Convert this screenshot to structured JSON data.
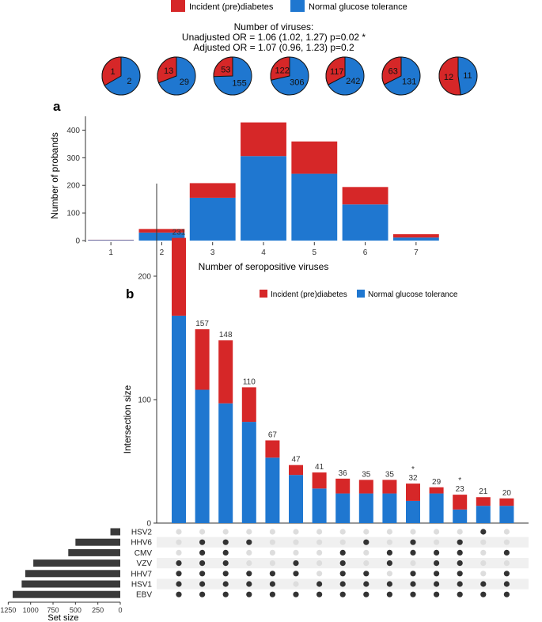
{
  "colors": {
    "red": "#d62728",
    "blue": "#1f77d0",
    "dot_on": "#333333",
    "dot_off": "#dddddd",
    "stripe": "#f0f0f0",
    "setbar": "#3a3a3a"
  },
  "legend": {
    "red_label": "Incident (pre)diabetes",
    "blue_label": "Normal glucose tolerance"
  },
  "header": {
    "line1": "Number of viruses:",
    "line2": "Unadjusted OR = 1.06 (1.02, 1.27) p=0.02 *",
    "line3": "Adjusted OR = 1.07 (0.96, 1.23) p=0.2"
  },
  "chart_data": [
    {
      "type": "pie",
      "title": "Number of viruses",
      "pies": [
        {
          "red": 1,
          "blue": 2
        },
        {
          "red": 13,
          "blue": 29
        },
        {
          "red": 53,
          "blue": 155
        },
        {
          "red": 122,
          "blue": 306
        },
        {
          "red": 117,
          "blue": 242
        },
        {
          "red": 63,
          "blue": 131
        },
        {
          "red": 12,
          "blue": 11
        }
      ]
    },
    {
      "type": "bar",
      "panel": "a",
      "categories": [
        "1",
        "2",
        "3",
        "4",
        "5",
        "6",
        "7"
      ],
      "series": [
        {
          "name": "Normal glucose tolerance",
          "values": [
            2,
            29,
            155,
            306,
            242,
            131,
            11
          ]
        },
        {
          "name": "Incident (pre)diabetes",
          "values": [
            1,
            13,
            53,
            122,
            117,
            63,
            12
          ]
        }
      ],
      "xlabel": "Number of seropositive viruses",
      "ylabel": "Number of probands",
      "yticks": [
        0,
        100,
        200,
        300,
        400
      ],
      "ylim": [
        0,
        450
      ]
    },
    {
      "type": "bar",
      "panel": "b",
      "subtype": "upset",
      "ylabel": "Intersection size",
      "yticks": [
        0,
        100,
        200
      ],
      "ylim": [
        0,
        275
      ],
      "totals": [
        231,
        157,
        148,
        110,
        67,
        47,
        41,
        36,
        35,
        35,
        32,
        29,
        23,
        21,
        20
      ],
      "stars": [
        false,
        false,
        false,
        false,
        false,
        false,
        false,
        false,
        false,
        false,
        true,
        false,
        true,
        false,
        false
      ],
      "series": [
        {
          "name": "Normal glucose tolerance",
          "values": [
            168,
            108,
            97,
            82,
            53,
            39,
            28,
            24,
            24,
            24,
            18,
            24,
            11,
            14,
            14
          ]
        },
        {
          "name": "Incident (pre)diabetes",
          "values": [
            63,
            49,
            51,
            28,
            14,
            8,
            13,
            12,
            11,
            11,
            14,
            5,
            12,
            7,
            6
          ]
        }
      ],
      "sets": [
        "HSV2",
        "HHV6",
        "CMV",
        "VZV",
        "HHV7",
        "HSV1",
        "EBV"
      ],
      "set_sizes": [
        110,
        500,
        580,
        970,
        1060,
        1100,
        1200
      ],
      "set_xlabel": "Set size",
      "set_ticks": [
        1250,
        1000,
        750,
        500,
        250,
        0
      ],
      "matrix": [
        [
          0,
          0,
          0,
          0,
          0,
          0,
          0,
          0,
          0,
          0,
          0,
          0,
          0,
          1,
          0
        ],
        [
          0,
          1,
          1,
          1,
          0,
          0,
          0,
          0,
          1,
          0,
          1,
          0,
          1,
          0,
          0
        ],
        [
          0,
          1,
          1,
          0,
          0,
          0,
          0,
          1,
          0,
          1,
          1,
          1,
          1,
          0,
          1
        ],
        [
          1,
          1,
          1,
          0,
          0,
          1,
          0,
          1,
          0,
          1,
          0,
          1,
          1,
          0,
          0
        ],
        [
          1,
          1,
          1,
          1,
          1,
          1,
          0,
          1,
          1,
          0,
          1,
          1,
          1,
          0,
          1
        ],
        [
          1,
          1,
          1,
          1,
          1,
          0,
          1,
          1,
          1,
          1,
          1,
          1,
          1,
          1,
          1
        ],
        [
          1,
          1,
          1,
          1,
          1,
          1,
          1,
          1,
          1,
          1,
          1,
          1,
          1,
          1,
          1
        ]
      ]
    }
  ],
  "panel_labels": {
    "a": "a",
    "b": "b"
  }
}
